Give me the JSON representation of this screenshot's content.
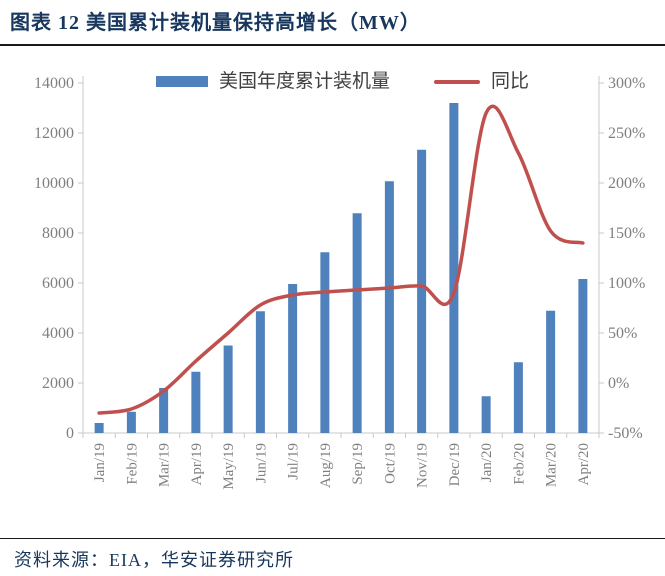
{
  "header": {
    "title": "图表 12 美国累计装机量保持高增长（MW）"
  },
  "footer": {
    "source": "资料来源：EIA，华安证券研究所"
  },
  "colors": {
    "bar": "#4F81BD",
    "line": "#C0504D",
    "title_text": "#17375E",
    "axis_label": "#7F7F7F",
    "axis_line": "#C9C9C9"
  },
  "chart_data": {
    "type": "bar",
    "subtype": "bar+line dual axis",
    "title": "图表 12 美国累计装机量保持高增长（MW）",
    "categories": [
      "Jan/19",
      "Feb/19",
      "Mar/19",
      "Apr/19",
      "May/19",
      "Jun/19",
      "Jul/19",
      "Aug/19",
      "Sep/19",
      "Oct/19",
      "Nov/19",
      "Dec/19",
      "Jan/20",
      "Feb/20",
      "Mar/20",
      "Apr/20"
    ],
    "series": [
      {
        "name": "美国年度累计装机量",
        "type": "bar",
        "axis": "left",
        "color": "#4F81BD",
        "values": [
          400,
          850,
          1800,
          2450,
          3500,
          4870,
          5960,
          7230,
          8790,
          10070,
          11330,
          13200,
          1470,
          2830,
          4890,
          6160
        ]
      },
      {
        "name": "同比",
        "type": "line",
        "axis": "right",
        "color": "#C0504D",
        "values": [
          -30,
          -26,
          -8,
          22,
          50,
          78,
          88,
          91,
          93,
          95,
          97,
          90,
          270,
          230,
          152,
          140
        ]
      }
    ],
    "left_axis": {
      "min": 0,
      "max": 14000,
      "step": 2000,
      "tick_labels": [
        "0",
        "2000",
        "4000",
        "6000",
        "8000",
        "10000",
        "12000",
        "14000"
      ]
    },
    "right_axis": {
      "min": -50,
      "max": 300,
      "step": 50,
      "tick_labels": [
        "-50%",
        "0%",
        "50%",
        "100%",
        "150%",
        "200%",
        "250%",
        "300%"
      ]
    },
    "legend_position": "top-center",
    "grid": false,
    "x_label_rotation": -90
  }
}
